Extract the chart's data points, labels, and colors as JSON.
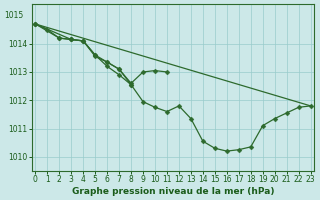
{
  "series": [
    {
      "x": [
        0,
        23
      ],
      "y": [
        1014.7,
        1011.8
      ]
    },
    {
      "x": [
        0,
        1,
        2,
        3,
        4,
        5,
        6,
        7,
        8
      ],
      "y": [
        1014.7,
        1014.5,
        1014.2,
        1014.15,
        1014.1,
        1013.6,
        1013.2,
        1012.9,
        1012.55
      ]
    },
    {
      "x": [
        0,
        2,
        3,
        4,
        5,
        6,
        7,
        8,
        9,
        10,
        11
      ],
      "y": [
        1014.7,
        1014.2,
        1014.15,
        1014.1,
        1013.55,
        1013.35,
        1013.1,
        1012.6,
        1013.0,
        1013.05,
        1013.0
      ]
    },
    {
      "x": [
        0,
        3,
        4,
        5,
        6,
        7,
        8,
        9,
        10,
        11,
        12,
        13,
        14,
        15,
        16,
        17,
        18,
        19,
        20,
        21,
        22,
        23
      ],
      "y": [
        1014.7,
        1014.15,
        1014.1,
        1013.6,
        1013.35,
        1013.1,
        1012.55,
        1011.95,
        1011.75,
        1011.6,
        1011.8,
        1011.35,
        1010.55,
        1010.3,
        1010.2,
        1010.25,
        1010.35,
        1011.1,
        1011.35,
        1011.55,
        1011.75,
        1011.8
      ]
    }
  ],
  "line_color": "#2d6a2d",
  "marker": "D",
  "markersize": 2.5,
  "linewidth": 0.9,
  "bg_color": "#cce8e8",
  "grid_color": "#99cccc",
  "grid_linewidth": 0.5,
  "xlabel": "Graphe pression niveau de la mer (hPa)",
  "xlabel_color": "#1a5c1a",
  "tick_color": "#1a5c1a",
  "axis_color": "#2d6a2d",
  "xlim_left": -0.3,
  "xlim_right": 23.3,
  "ylim_bottom": 1009.5,
  "ylim_top": 1015.4,
  "yticks": [
    1010,
    1011,
    1012,
    1013,
    1014
  ],
  "ytick_top_label": "1015",
  "ytick_top_value": 1015.0,
  "xticks": [
    0,
    1,
    2,
    3,
    4,
    5,
    6,
    7,
    8,
    9,
    10,
    11,
    12,
    13,
    14,
    15,
    16,
    17,
    18,
    19,
    20,
    21,
    22,
    23
  ],
  "tick_fontsize": 5.5,
  "xlabel_fontsize": 6.5,
  "xlabel_fontweight": "bold"
}
